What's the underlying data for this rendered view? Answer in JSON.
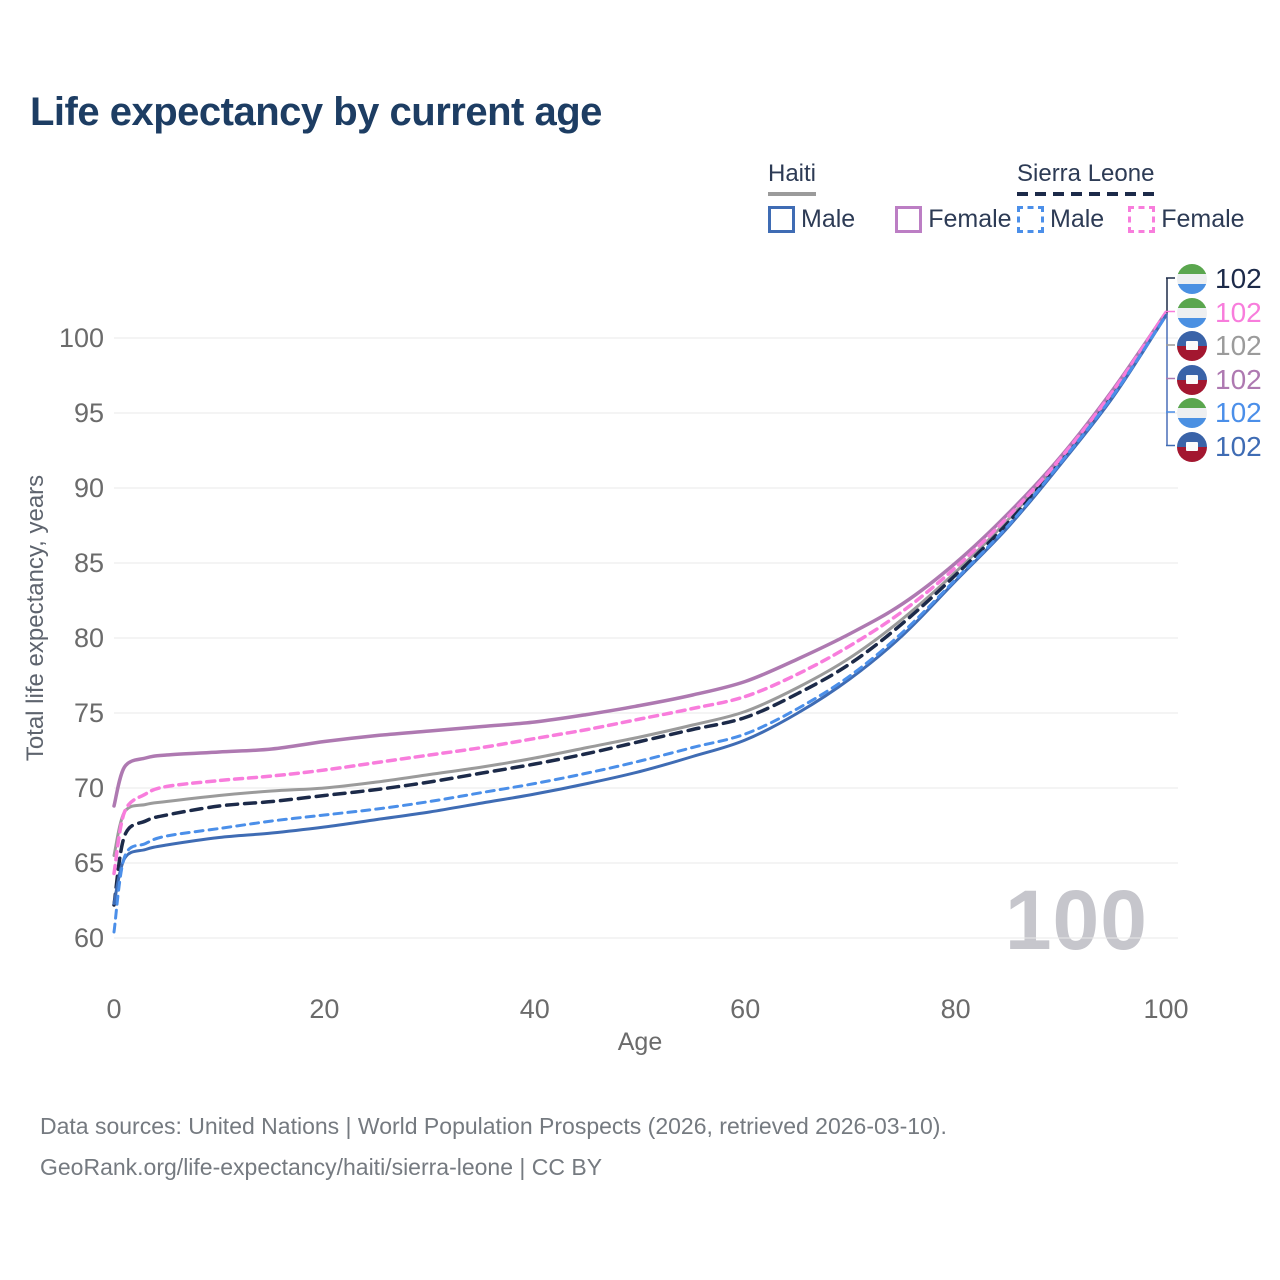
{
  "title": "Life expectancy by current age",
  "colors": {
    "title": "#1d3d63",
    "axis": "#6b6b6b",
    "grid": "#e8e8e8",
    "watermark": "#c6c6cc",
    "footer": "#757a80"
  },
  "legend": {
    "groups": [
      {
        "title": "Haiti",
        "line_style": "solid",
        "underline_color": "#9b9b9b",
        "items": [
          {
            "label": "Male",
            "color": "#3f6cb4"
          },
          {
            "label": "Female",
            "color": "#bc7ec4"
          }
        ]
      },
      {
        "title": "Sierra Leone",
        "line_style": "dashed",
        "underline_color": "#1c2a49",
        "items": [
          {
            "label": "Male",
            "color": "#4b8fe9"
          },
          {
            "label": "Female",
            "color": "#f87ddc"
          }
        ]
      }
    ]
  },
  "chart_data": {
    "type": "line",
    "title": "Life expectancy by current age",
    "xlabel": "Age",
    "ylabel": "Total life expectancy, years",
    "xlim": [
      0,
      100
    ],
    "ylim": [
      60,
      102
    ],
    "xticks": [
      0,
      20,
      40,
      60,
      80,
      100
    ],
    "yticks": [
      60,
      65,
      70,
      75,
      80,
      85,
      90,
      95,
      100
    ],
    "grid": "horizontal",
    "legend_position": "top-right",
    "age_watermark": "100",
    "series": [
      {
        "id": "sierra-leone-both",
        "name": "Sierra Leone",
        "country": "Sierra Leone",
        "sex": "both",
        "flag": "sierra-leone",
        "color": "#1c2a49",
        "dash": true,
        "dash_pattern": "11 7",
        "width": 3.5,
        "end_label": "102",
        "points": [
          [
            0,
            62.2
          ],
          [
            1,
            66.8
          ],
          [
            3,
            67.8
          ],
          [
            5,
            68.2
          ],
          [
            10,
            68.8
          ],
          [
            15,
            69.1
          ],
          [
            20,
            69.5
          ],
          [
            25,
            69.9
          ],
          [
            30,
            70.4
          ],
          [
            35,
            71.0
          ],
          [
            40,
            71.6
          ],
          [
            45,
            72.3
          ],
          [
            50,
            73.1
          ],
          [
            55,
            73.9
          ],
          [
            60,
            74.7
          ],
          [
            65,
            76.3
          ],
          [
            70,
            78.3
          ],
          [
            75,
            81.0
          ],
          [
            80,
            84.2
          ],
          [
            85,
            87.7
          ],
          [
            90,
            91.8
          ],
          [
            95,
            96.3
          ],
          [
            100,
            101.6
          ]
        ]
      },
      {
        "id": "sierra-leone-female",
        "name": "Sierra Leone female",
        "country": "Sierra Leone",
        "sex": "female",
        "flag": "sierra-leone",
        "color": "#f87ddc",
        "dash": true,
        "dash_pattern": "8 6",
        "width": 3.5,
        "end_label": "102",
        "points": [
          [
            0,
            64.3
          ],
          [
            1,
            68.4
          ],
          [
            3,
            69.6
          ],
          [
            5,
            70.1
          ],
          [
            10,
            70.5
          ],
          [
            15,
            70.8
          ],
          [
            20,
            71.2
          ],
          [
            25,
            71.7
          ],
          [
            30,
            72.2
          ],
          [
            35,
            72.7
          ],
          [
            40,
            73.3
          ],
          [
            45,
            73.9
          ],
          [
            50,
            74.6
          ],
          [
            55,
            75.3
          ],
          [
            60,
            76.1
          ],
          [
            65,
            77.6
          ],
          [
            70,
            79.5
          ],
          [
            75,
            81.8
          ],
          [
            80,
            84.7
          ],
          [
            85,
            88.1
          ],
          [
            90,
            92.0
          ],
          [
            95,
            96.5
          ],
          [
            100,
            101.7
          ]
        ]
      },
      {
        "id": "haiti-both",
        "name": "Haiti",
        "country": "Haiti",
        "sex": "both",
        "flag": "haiti",
        "color": "#9b9b9b",
        "dash": false,
        "width": 3,
        "end_label": "102",
        "points": [
          [
            0,
            65.5
          ],
          [
            1,
            68.4
          ],
          [
            3,
            68.9
          ],
          [
            5,
            69.1
          ],
          [
            10,
            69.5
          ],
          [
            15,
            69.8
          ],
          [
            20,
            70.0
          ],
          [
            25,
            70.4
          ],
          [
            30,
            70.9
          ],
          [
            35,
            71.4
          ],
          [
            40,
            72.0
          ],
          [
            45,
            72.7
          ],
          [
            50,
            73.4
          ],
          [
            55,
            74.2
          ],
          [
            60,
            75.1
          ],
          [
            65,
            76.7
          ],
          [
            70,
            78.7
          ],
          [
            75,
            81.3
          ],
          [
            80,
            84.4
          ],
          [
            85,
            87.9
          ],
          [
            90,
            91.9
          ],
          [
            95,
            96.4
          ],
          [
            100,
            101.6
          ]
        ]
      },
      {
        "id": "haiti-female",
        "name": "Haiti female",
        "country": "Haiti",
        "sex": "female",
        "flag": "haiti",
        "color": "#ae79b1",
        "dash": false,
        "width": 3.5,
        "end_label": "102",
        "points": [
          [
            0,
            68.8
          ],
          [
            1,
            71.4
          ],
          [
            3,
            72.0
          ],
          [
            5,
            72.2
          ],
          [
            10,
            72.4
          ],
          [
            15,
            72.6
          ],
          [
            20,
            73.1
          ],
          [
            25,
            73.5
          ],
          [
            30,
            73.8
          ],
          [
            35,
            74.1
          ],
          [
            40,
            74.4
          ],
          [
            45,
            74.9
          ],
          [
            50,
            75.5
          ],
          [
            55,
            76.2
          ],
          [
            60,
            77.1
          ],
          [
            65,
            78.6
          ],
          [
            70,
            80.3
          ],
          [
            75,
            82.3
          ],
          [
            80,
            85.0
          ],
          [
            85,
            88.3
          ],
          [
            90,
            92.1
          ],
          [
            95,
            96.6
          ],
          [
            100,
            101.7
          ]
        ]
      },
      {
        "id": "sierra-leone-male",
        "name": "Sierra Leone male",
        "country": "Sierra Leone",
        "sex": "male",
        "flag": "sierra-leone",
        "color": "#4b8fe9",
        "dash": true,
        "dash_pattern": "8 6",
        "width": 3,
        "end_label": "102",
        "points": [
          [
            0,
            60.4
          ],
          [
            1,
            65.4
          ],
          [
            3,
            66.3
          ],
          [
            5,
            66.8
          ],
          [
            10,
            67.3
          ],
          [
            15,
            67.8
          ],
          [
            20,
            68.2
          ],
          [
            25,
            68.6
          ],
          [
            30,
            69.1
          ],
          [
            35,
            69.7
          ],
          [
            40,
            70.3
          ],
          [
            45,
            71.0
          ],
          [
            50,
            71.8
          ],
          [
            55,
            72.7
          ],
          [
            60,
            73.6
          ],
          [
            65,
            75.3
          ],
          [
            70,
            77.5
          ],
          [
            75,
            80.4
          ],
          [
            80,
            83.9
          ],
          [
            85,
            87.5
          ],
          [
            90,
            91.7
          ],
          [
            95,
            96.2
          ],
          [
            100,
            101.5
          ]
        ]
      },
      {
        "id": "haiti-male",
        "name": "Haiti male",
        "country": "Haiti",
        "sex": "male",
        "flag": "haiti",
        "color": "#3f6cb4",
        "dash": false,
        "width": 3,
        "end_label": "102",
        "points": [
          [
            0,
            62.3
          ],
          [
            1,
            65.3
          ],
          [
            3,
            65.9
          ],
          [
            5,
            66.2
          ],
          [
            10,
            66.7
          ],
          [
            15,
            67.0
          ],
          [
            20,
            67.4
          ],
          [
            25,
            67.9
          ],
          [
            30,
            68.4
          ],
          [
            35,
            69.0
          ],
          [
            40,
            69.6
          ],
          [
            45,
            70.3
          ],
          [
            50,
            71.1
          ],
          [
            55,
            72.1
          ],
          [
            60,
            73.2
          ],
          [
            65,
            75.0
          ],
          [
            70,
            77.3
          ],
          [
            75,
            80.2
          ],
          [
            80,
            83.8
          ],
          [
            85,
            87.4
          ],
          [
            90,
            91.6
          ],
          [
            95,
            96.1
          ],
          [
            100,
            101.5
          ]
        ]
      }
    ]
  },
  "footer": {
    "line1": "Data sources: United Nations | World Population Prospects (2026, retrieved 2026-03-10).",
    "line2": "GeoRank.org/life-expectancy/haiti/sierra-leone | CC BY"
  }
}
